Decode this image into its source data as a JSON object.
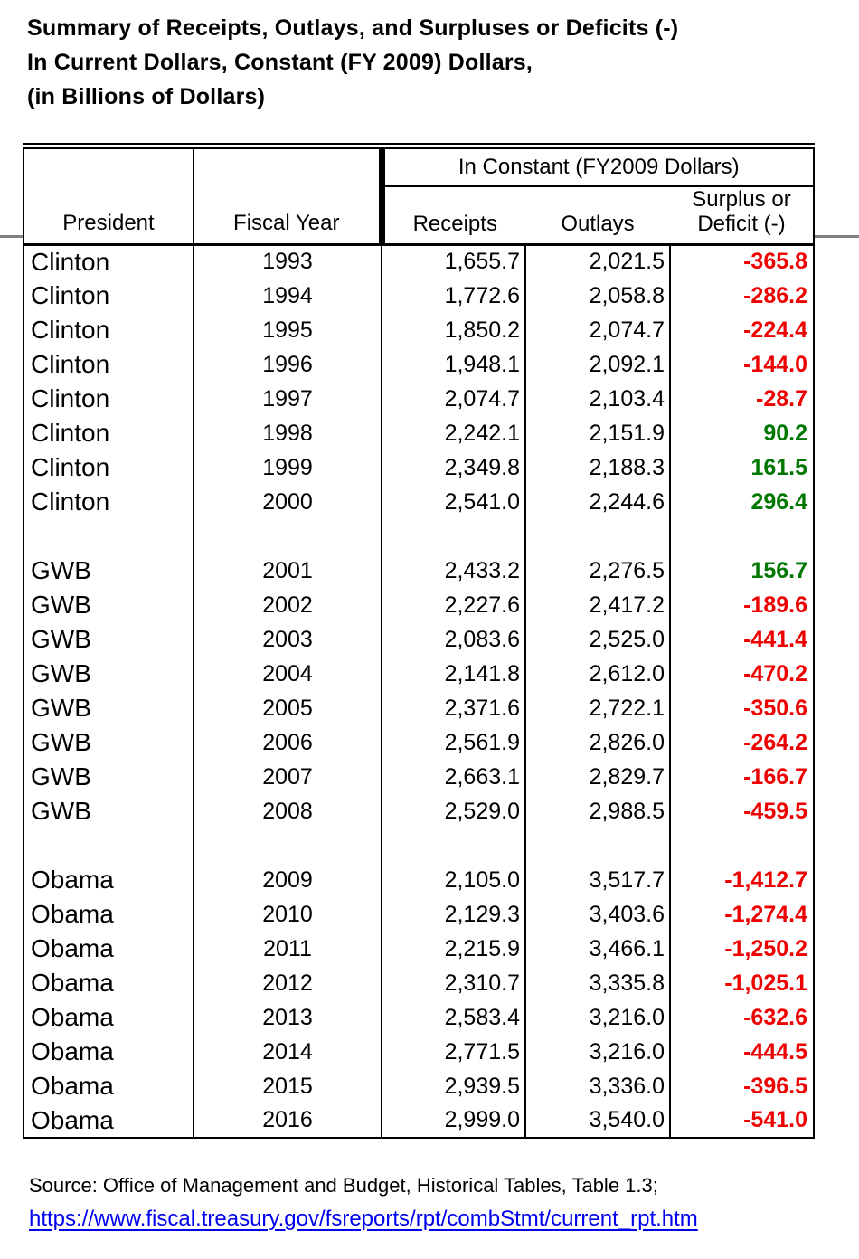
{
  "title": {
    "line1": "Summary of Receipts, Outlays, and Surpluses or Deficits (-)",
    "line2": "In Current Dollars, Constant (FY 2009) Dollars,",
    "line3": "(in Billions of Dollars)"
  },
  "table": {
    "group_header": "In Constant (FY2009 Dollars)",
    "columns": {
      "president": "President",
      "fiscal_year": "Fiscal Year",
      "receipts": "Receipts",
      "outlays": "Outlays",
      "balance_line1": "Surplus or",
      "balance_line2": "Deficit (-)"
    },
    "rows": [
      {
        "president": "Clinton",
        "fiscal_year": "1993",
        "receipts": "1,655.7",
        "outlays": "2,021.5",
        "balance": "-365.8"
      },
      {
        "president": "Clinton",
        "fiscal_year": "1994",
        "receipts": "1,772.6",
        "outlays": "2,058.8",
        "balance": "-286.2"
      },
      {
        "president": "Clinton",
        "fiscal_year": "1995",
        "receipts": "1,850.2",
        "outlays": "2,074.7",
        "balance": "-224.4"
      },
      {
        "president": "Clinton",
        "fiscal_year": "1996",
        "receipts": "1,948.1",
        "outlays": "2,092.1",
        "balance": "-144.0"
      },
      {
        "president": "Clinton",
        "fiscal_year": "1997",
        "receipts": "2,074.7",
        "outlays": "2,103.4",
        "balance": "-28.7"
      },
      {
        "president": "Clinton",
        "fiscal_year": "1998",
        "receipts": "2,242.1",
        "outlays": "2,151.9",
        "balance": "90.2"
      },
      {
        "president": "Clinton",
        "fiscal_year": "1999",
        "receipts": "2,349.8",
        "outlays": "2,188.3",
        "balance": "161.5"
      },
      {
        "president": "Clinton",
        "fiscal_year": "2000",
        "receipts": "2,541.0",
        "outlays": "2,244.6",
        "balance": "296.4"
      },
      {
        "spacer": true
      },
      {
        "president": "GWB",
        "fiscal_year": "2001",
        "receipts": "2,433.2",
        "outlays": "2,276.5",
        "balance": "156.7"
      },
      {
        "president": "GWB",
        "fiscal_year": "2002",
        "receipts": "2,227.6",
        "outlays": "2,417.2",
        "balance": "-189.6"
      },
      {
        "president": "GWB",
        "fiscal_year": "2003",
        "receipts": "2,083.6",
        "outlays": "2,525.0",
        "balance": "-441.4"
      },
      {
        "president": "GWB",
        "fiscal_year": "2004",
        "receipts": "2,141.8",
        "outlays": "2,612.0",
        "balance": "-470.2"
      },
      {
        "president": "GWB",
        "fiscal_year": "2005",
        "receipts": "2,371.6",
        "outlays": "2,722.1",
        "balance": "-350.6"
      },
      {
        "president": "GWB",
        "fiscal_year": "2006",
        "receipts": "2,561.9",
        "outlays": "2,826.0",
        "balance": "-264.2"
      },
      {
        "president": "GWB",
        "fiscal_year": "2007",
        "receipts": "2,663.1",
        "outlays": "2,829.7",
        "balance": "-166.7"
      },
      {
        "president": "GWB",
        "fiscal_year": "2008",
        "receipts": "2,529.0",
        "outlays": "2,988.5",
        "balance": "-459.5"
      },
      {
        "spacer": true
      },
      {
        "president": "Obama",
        "fiscal_year": "2009",
        "receipts": "2,105.0",
        "outlays": "3,517.7",
        "balance": "-1,412.7"
      },
      {
        "president": "Obama",
        "fiscal_year": "2010",
        "receipts": "2,129.3",
        "outlays": "3,403.6",
        "balance": "-1,274.4"
      },
      {
        "president": "Obama",
        "fiscal_year": "2011",
        "receipts": "2,215.9",
        "outlays": "3,466.1",
        "balance": "-1,250.2"
      },
      {
        "president": "Obama",
        "fiscal_year": "2012",
        "receipts": "2,310.7",
        "outlays": "3,335.8",
        "balance": "-1,025.1"
      },
      {
        "president": "Obama",
        "fiscal_year": "2013",
        "receipts": "2,583.4",
        "outlays": "3,216.0",
        "balance": "-632.6"
      },
      {
        "president": "Obama",
        "fiscal_year": "2014",
        "receipts": "2,771.5",
        "outlays": "3,216.0",
        "balance": "-444.5"
      },
      {
        "president": "Obama",
        "fiscal_year": "2015",
        "receipts": "2,939.5",
        "outlays": "3,336.0",
        "balance": "-396.5"
      },
      {
        "president": "Obama",
        "fiscal_year": "2016",
        "receipts": "2,999.0",
        "outlays": "3,540.0",
        "balance": "-541.0"
      }
    ]
  },
  "source": {
    "text": "Source: Office of Management and Budget, Historical Tables, Table 1.3;",
    "link": "https://www.fiscal.treasury.gov/fsreports/rpt/combStmt/current_rpt.htm"
  },
  "colors": {
    "deficit_negative": "#ee0000",
    "surplus_positive": "#007700",
    "link_blue": "#0000ee",
    "divider_gray": "#808080"
  }
}
